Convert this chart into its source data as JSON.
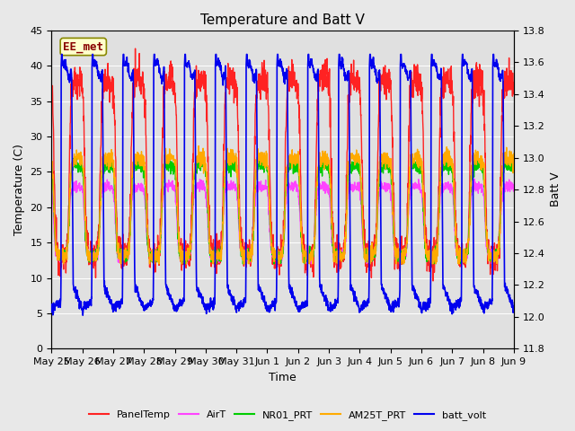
{
  "title": "Temperature and Batt V",
  "xlabel": "Time",
  "ylabel_left": "Temperature (C)",
  "ylabel_right": "Batt V",
  "annotation_text": "EE_met",
  "ylim_left": [
    0,
    45
  ],
  "ylim_right": [
    11.8,
    13.8
  ],
  "n_days": 15,
  "x_ticks_labels": [
    "May 25",
    "May 26",
    "May 27",
    "May 28",
    "May 29",
    "May 30",
    "May 31",
    "Jun 1",
    "Jun 2",
    "Jun 3",
    "Jun 4",
    "Jun 5",
    "Jun 6",
    "Jun 7",
    "Jun 8",
    "Jun 9"
  ],
  "background_color": "#e8e8e8",
  "plot_bg_color": "#e0e0e0",
  "grid_color": "#ffffff",
  "line_colors": {
    "PanelTemp": "#ff2222",
    "AirT": "#ff44ff",
    "NR01_PRT": "#00cc00",
    "AM25T_PRT": "#ffaa00",
    "batt_volt": "#0000ee"
  },
  "lw_temp": 1.0,
  "lw_batt": 1.2
}
